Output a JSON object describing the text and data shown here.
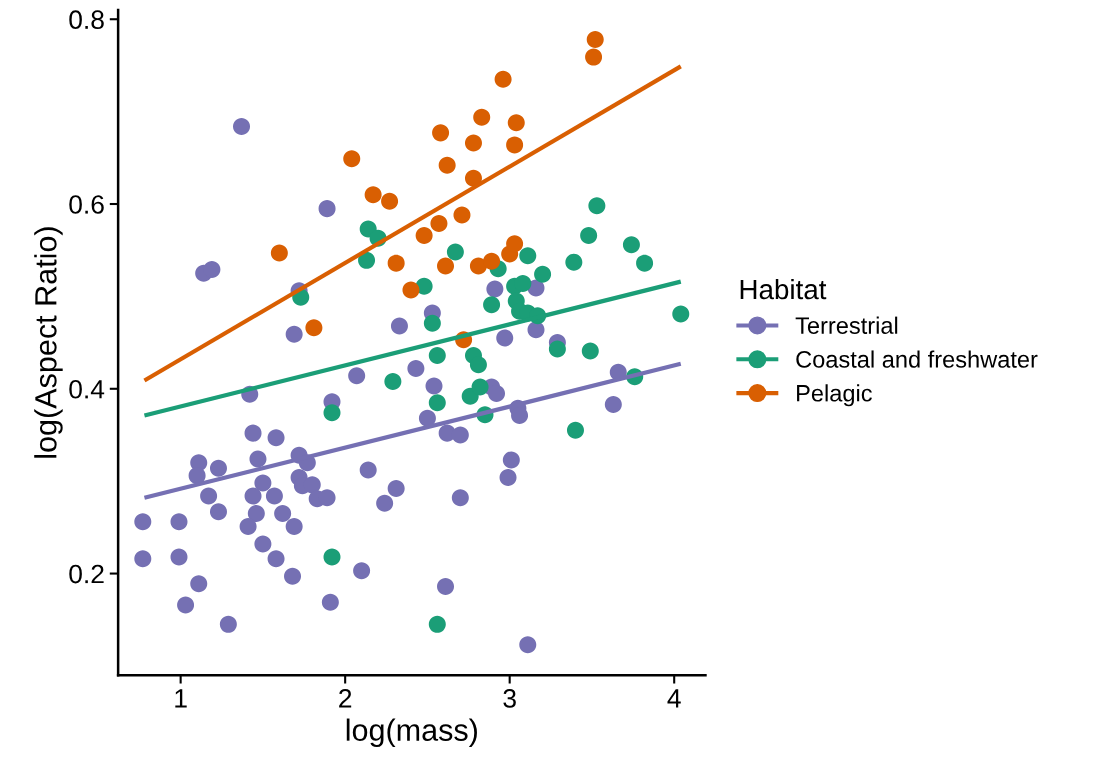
{
  "chart_data": {
    "type": "scatter",
    "xlabel": "log(mass)",
    "ylabel": "log(Aspect Ratio)",
    "legend_title": "Habitat",
    "legend": "right",
    "grid": false,
    "marker": "circle",
    "xlim": [
      0.62,
      4.19
    ],
    "ylim": [
      0.09,
      0.81
    ],
    "xticks": [
      1,
      2,
      3,
      4
    ],
    "yticks": [
      0.2,
      0.4,
      0.6,
      0.8
    ],
    "series": [
      {
        "name": "Terrestrial",
        "color": "#7570b3",
        "x": [
          1.37,
          1.89,
          1.14,
          1.19,
          1.72,
          2.33,
          1.69,
          2.91,
          3.16,
          2.53,
          3.16,
          2.97,
          3.29,
          2.07,
          2.43,
          1.42,
          1.92,
          1.44,
          1.58,
          1.11,
          1.1,
          1.23,
          1.47,
          1.72,
          1.77,
          2.14,
          1.5,
          1.44,
          1.57,
          1.72,
          1.74,
          1.8,
          1.83,
          1.89,
          2.31,
          2.24,
          1.17,
          1.23,
          0.77,
          0.99,
          1.46,
          1.41,
          1.62,
          1.69,
          0.77,
          0.99,
          1.5,
          1.58,
          1.68,
          2.1,
          1.11,
          1.03,
          1.91,
          1.29,
          3.66,
          2.54,
          2.89,
          2.92,
          3.05,
          3.06,
          3.63,
          2.5,
          2.62,
          2.7,
          3.01,
          2.99,
          2.7,
          2.61,
          3.11
        ],
        "values": [
          0.684,
          0.595,
          0.525,
          0.529,
          0.506,
          0.468,
          0.459,
          0.508,
          0.509,
          0.482,
          0.464,
          0.455,
          0.45,
          0.414,
          0.422,
          0.394,
          0.386,
          0.352,
          0.347,
          0.32,
          0.306,
          0.314,
          0.324,
          0.328,
          0.32,
          0.312,
          0.298,
          0.284,
          0.284,
          0.304,
          0.295,
          0.296,
          0.281,
          0.282,
          0.292,
          0.276,
          0.284,
          0.267,
          0.256,
          0.256,
          0.265,
          0.251,
          0.265,
          0.251,
          0.216,
          0.218,
          0.232,
          0.216,
          0.197,
          0.203,
          0.189,
          0.166,
          0.169,
          0.145,
          0.418,
          0.403,
          0.402,
          0.395,
          0.379,
          0.371,
          0.383,
          0.368,
          0.352,
          0.35,
          0.323,
          0.304,
          0.282,
          0.186,
          0.123
        ]
      },
      {
        "name": "Coastal and freshwater",
        "color": "#1b9e77",
        "x": [
          2.14,
          2.2,
          2.13,
          1.73,
          3.53,
          3.48,
          3.74,
          3.82,
          2.67,
          3.11,
          3.39,
          2.93,
          3.2,
          2.48,
          3.03,
          3.08,
          2.89,
          3.04,
          3.06,
          3.11,
          3.17,
          2.53,
          4.04,
          2.29,
          1.92,
          3.29,
          3.49,
          2.56,
          2.78,
          2.81,
          3.76,
          2.56,
          2.76,
          2.82,
          2.85,
          3.4,
          1.92,
          2.56
        ],
        "values": [
          0.573,
          0.563,
          0.539,
          0.499,
          0.598,
          0.566,
          0.556,
          0.536,
          0.548,
          0.544,
          0.537,
          0.53,
          0.524,
          0.511,
          0.511,
          0.514,
          0.491,
          0.495,
          0.484,
          0.482,
          0.479,
          0.471,
          0.481,
          0.408,
          0.374,
          0.443,
          0.441,
          0.436,
          0.436,
          0.426,
          0.413,
          0.385,
          0.392,
          0.402,
          0.372,
          0.355,
          0.218,
          0.145
        ]
      },
      {
        "name": "Pelagic",
        "color": "#d95f02",
        "x": [
          2.04,
          2.17,
          2.27,
          1.6,
          2.31,
          2.4,
          1.81,
          3.52,
          3.51,
          2.96,
          2.83,
          3.04,
          2.58,
          2.78,
          3.03,
          2.62,
          2.78,
          2.71,
          2.57,
          2.48,
          2.61,
          2.81,
          2.89,
          3.0,
          3.03,
          2.72
        ],
        "values": [
          0.649,
          0.61,
          0.603,
          0.547,
          0.536,
          0.507,
          0.466,
          0.778,
          0.759,
          0.735,
          0.694,
          0.688,
          0.677,
          0.666,
          0.664,
          0.642,
          0.628,
          0.588,
          0.579,
          0.566,
          0.533,
          0.533,
          0.538,
          0.546,
          0.557,
          0.453
        ]
      },
      {
        "type": "line",
        "marker": "none",
        "color": "#7570b3",
        "x": [
          0.78,
          4.04
        ],
        "values": [
          0.282,
          0.427
        ]
      },
      {
        "type": "line",
        "marker": "none",
        "color": "#1b9e77",
        "x": [
          0.78,
          4.04
        ],
        "values": [
          0.371,
          0.516
        ]
      },
      {
        "type": "line",
        "marker": "none",
        "color": "#d95f02",
        "x": [
          0.78,
          4.04
        ],
        "values": [
          0.409,
          0.749
        ]
      }
    ]
  }
}
